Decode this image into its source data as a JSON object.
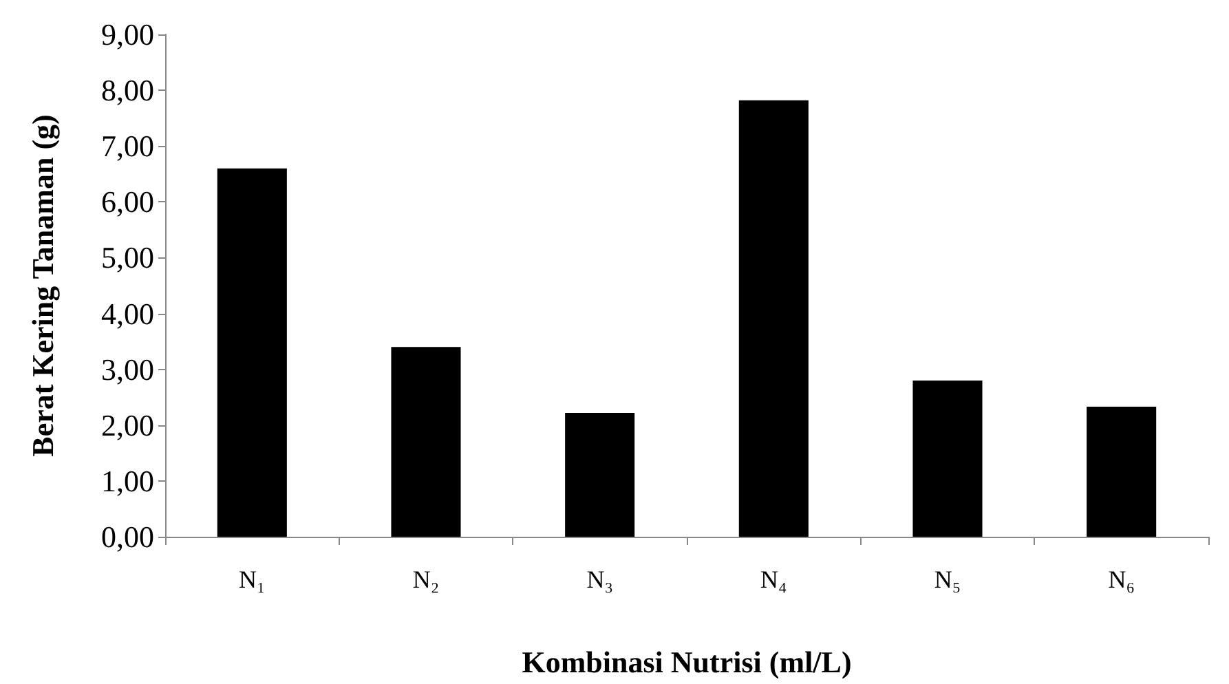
{
  "chart_data": {
    "type": "bar",
    "xlabel": "Kombinasi Nutrisi (ml/L)",
    "ylabel": "Berat Kering Tanaman (g)",
    "categories": [
      "N₁",
      "N₂",
      "N₃",
      "N₄",
      "N₅",
      "N₆"
    ],
    "values": [
      6.6,
      3.4,
      2.22,
      7.82,
      2.8,
      2.33
    ],
    "color": "#000000",
    "ylim": [
      0,
      9
    ],
    "yticks": [
      {
        "value": 0,
        "label": "0,00"
      },
      {
        "value": 1,
        "label": "1,00"
      },
      {
        "value": 2,
        "label": "2,00"
      },
      {
        "value": 3,
        "label": "3,00"
      },
      {
        "value": 4,
        "label": "4,00"
      },
      {
        "value": 5,
        "label": "5,00"
      },
      {
        "value": 6,
        "label": "6,00"
      },
      {
        "value": 7,
        "label": "7,00"
      },
      {
        "value": 8,
        "label": "8,00"
      },
      {
        "value": 9,
        "label": "9,00"
      }
    ],
    "grid": false
  }
}
